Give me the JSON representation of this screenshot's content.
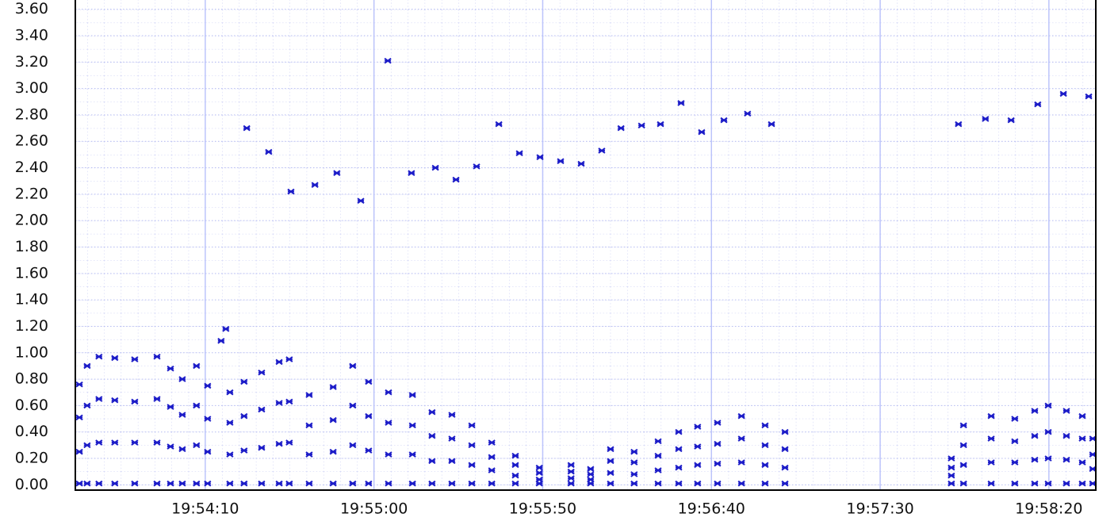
{
  "chart_data": {
    "type": "scatter",
    "xlim": [
      71611.5,
      71913.9
    ],
    "ylim": [
      -0.04,
      3.67
    ],
    "xticks": [
      {
        "value": 71650,
        "label": "19:54:10"
      },
      {
        "value": 71700,
        "label": "19:55:00"
      },
      {
        "value": 71750,
        "label": "19:55:50"
      },
      {
        "value": 71800,
        "label": "19:56:40"
      },
      {
        "value": 71850,
        "label": "19:57:30"
      },
      {
        "value": 71900,
        "label": "19:58:20"
      }
    ],
    "yticks": [
      {
        "value": 0,
        "label": "0.00"
      },
      {
        "value": 0.2,
        "label": "0.20"
      },
      {
        "value": 0.4,
        "label": "0.40"
      },
      {
        "value": 0.6,
        "label": "0.60"
      },
      {
        "value": 0.8,
        "label": "0.80"
      },
      {
        "value": 1,
        "label": "1.00"
      },
      {
        "value": 1.2,
        "label": "1.20"
      },
      {
        "value": 1.4,
        "label": "1.40"
      },
      {
        "value": 1.6,
        "label": "1.60"
      },
      {
        "value": 1.8,
        "label": "1.80"
      },
      {
        "value": 2,
        "label": "2.00"
      },
      {
        "value": 2.2,
        "label": "2.20"
      },
      {
        "value": 2.4,
        "label": "2.40"
      },
      {
        "value": 2.6,
        "label": "2.60"
      },
      {
        "value": 2.8,
        "label": "2.80"
      },
      {
        "value": 3,
        "label": "3.00"
      },
      {
        "value": 3.2,
        "label": "3.20"
      },
      {
        "value": 3.4,
        "label": "3.40"
      },
      {
        "value": 3.6,
        "label": "3.60"
      }
    ],
    "grid": true,
    "series": [
      {
        "color": "#1c1cc8",
        "x": [
          71612.7,
          71612.7,
          71612.7,
          71612.7,
          71615.0,
          71615.0,
          71615.0,
          71615.0,
          71618.5,
          71618.5,
          71618.5,
          71618.5,
          71623.2,
          71623.2,
          71623.2,
          71623.2,
          71629.1,
          71629.1,
          71629.1,
          71629.1,
          71635.7,
          71635.7,
          71635.7,
          71635.7,
          71639.7,
          71639.7,
          71639.7,
          71639.7,
          71643.2,
          71643.2,
          71643.2,
          71643.2,
          71647.4,
          71647.4,
          71647.4,
          71647.4,
          71650.7,
          71650.7,
          71650.7,
          71650.7,
          71657.3,
          71657.3,
          71657.3,
          71657.3,
          71661.5,
          71661.5,
          71661.5,
          71661.5,
          71666.7,
          71666.7,
          71666.7,
          71666.7,
          71671.9,
          71671.9,
          71671.9,
          71671.9,
          71674.9,
          71674.9,
          71674.9,
          71674.9,
          71680.8,
          71680.8,
          71680.8,
          71680.8,
          71687.9,
          71687.9,
          71687.9,
          71687.9,
          71693.7,
          71693.7,
          71693.7,
          71693.7,
          71698.4,
          71698.4,
          71698.4,
          71698.4,
          71704.3,
          71704.3,
          71704.3,
          71704.3,
          71711.4,
          71711.4,
          71711.4,
          71711.4,
          71717.2,
          71717.2,
          71717.2,
          71717.2,
          71723.1,
          71723.1,
          71723.1,
          71723.1,
          71729.0,
          71729.0,
          71729.0,
          71729.0,
          71734.9,
          71734.9,
          71734.9,
          71734.9,
          71741.9,
          71741.9,
          71741.9,
          71741.9,
          71749.0,
          71749.0,
          71749.0,
          71749.0,
          71758.4,
          71758.4,
          71758.4,
          71758.4,
          71764.2,
          71764.2,
          71764.2,
          71764.2,
          71770.1,
          71770.1,
          71770.1,
          71770.1,
          71777.1,
          71777.1,
          71777.1,
          71777.1,
          71784.2,
          71784.2,
          71784.2,
          71784.2,
          71790.3,
          71790.3,
          71790.3,
          71790.3,
          71795.9,
          71795.9,
          71795.9,
          71795.9,
          71801.8,
          71801.8,
          71801.8,
          71801.8,
          71808.9,
          71808.9,
          71808.9,
          71808.9,
          71815.9,
          71815.9,
          71815.9,
          71815.9,
          71821.8,
          71821.8,
          71821.8,
          71821.8,
          71871.1,
          71871.1,
          71871.1,
          71871.1,
          71874.7,
          71874.7,
          71874.7,
          71874.7,
          71882.9,
          71882.9,
          71882.9,
          71882.9,
          71889.9,
          71889.9,
          71889.9,
          71889.9,
          71895.8,
          71895.8,
          71895.8,
          71895.8,
          71899.8,
          71899.8,
          71899.8,
          71899.8,
          71905.2,
          71905.2,
          71905.2,
          71905.2,
          71909.9,
          71909.9,
          71909.9,
          71909.9,
          71913.0,
          71913.0,
          71913.0,
          71913.0,
          71654.7,
          71656.1,
          71662.3,
          71668.8,
          71675.4,
          71682.5,
          71689.0,
          71696.1,
          71704.1,
          71711.1,
          71718.2,
          71724.3,
          71730.4,
          71737.0,
          71743.1,
          71749.2,
          71755.3,
          71761.4,
          71767.5,
          71773.2,
          71779.3,
          71784.9,
          71791.0,
          71797.1,
          71803.7,
          71810.7,
          71817.8,
          71873.2,
          71881.2,
          71888.8,
          71896.7,
          71904.3,
          71911.8
        ],
        "values": [
          0.76,
          0.51,
          0.25,
          0.01,
          0.9,
          0.6,
          0.3,
          0.01,
          0.97,
          0.65,
          0.32,
          0.01,
          0.96,
          0.64,
          0.32,
          0.01,
          0.95,
          0.63,
          0.32,
          0.01,
          0.97,
          0.65,
          0.32,
          0.01,
          0.88,
          0.59,
          0.29,
          0.01,
          0.8,
          0.53,
          0.27,
          0.01,
          0.9,
          0.6,
          0.3,
          0.01,
          0.75,
          0.5,
          0.25,
          0.01,
          0.7,
          0.47,
          0.23,
          0.01,
          0.78,
          0.52,
          0.26,
          0.01,
          0.85,
          0.57,
          0.28,
          0.01,
          0.93,
          0.62,
          0.31,
          0.01,
          0.95,
          0.63,
          0.32,
          0.01,
          0.68,
          0.45,
          0.23,
          0.01,
          0.74,
          0.49,
          0.25,
          0.01,
          0.9,
          0.6,
          0.3,
          0.01,
          0.78,
          0.52,
          0.26,
          0.01,
          0.7,
          0.47,
          0.23,
          0.01,
          0.68,
          0.45,
          0.23,
          0.01,
          0.55,
          0.37,
          0.18,
          0.01,
          0.53,
          0.35,
          0.18,
          0.01,
          0.45,
          0.3,
          0.15,
          0.01,
          0.32,
          0.21,
          0.11,
          0.01,
          0.22,
          0.15,
          0.07,
          0.01,
          0.13,
          0.09,
          0.04,
          0.01,
          0.15,
          0.1,
          0.05,
          0.01,
          0.12,
          0.08,
          0.04,
          0.01,
          0.27,
          0.18,
          0.09,
          0.01,
          0.25,
          0.17,
          0.08,
          0.01,
          0.33,
          0.22,
          0.11,
          0.01,
          0.4,
          0.27,
          0.13,
          0.01,
          0.44,
          0.29,
          0.15,
          0.01,
          0.47,
          0.31,
          0.16,
          0.01,
          0.52,
          0.35,
          0.17,
          0.01,
          0.45,
          0.3,
          0.15,
          0.01,
          0.4,
          0.27,
          0.13,
          0.01,
          0.2,
          0.13,
          0.07,
          0.01,
          0.45,
          0.3,
          0.15,
          0.01,
          0.52,
          0.35,
          0.17,
          0.01,
          0.5,
          0.33,
          0.17,
          0.01,
          0.56,
          0.37,
          0.19,
          0.01,
          0.6,
          0.4,
          0.2,
          0.01,
          0.56,
          0.37,
          0.19,
          0.01,
          0.52,
          0.35,
          0.17,
          0.01,
          0.35,
          0.23,
          0.12,
          0.01,
          1.09,
          1.18,
          2.7,
          2.52,
          2.22,
          2.27,
          2.36,
          2.15,
          3.21,
          2.36,
          2.4,
          2.31,
          2.41,
          2.73,
          2.51,
          2.48,
          2.45,
          2.43,
          2.53,
          2.7,
          2.72,
          2.73,
          2.89,
          2.67,
          2.76,
          2.81,
          2.73,
          2.73,
          2.77,
          2.76,
          2.88,
          2.96,
          2.94
        ]
      }
    ]
  }
}
